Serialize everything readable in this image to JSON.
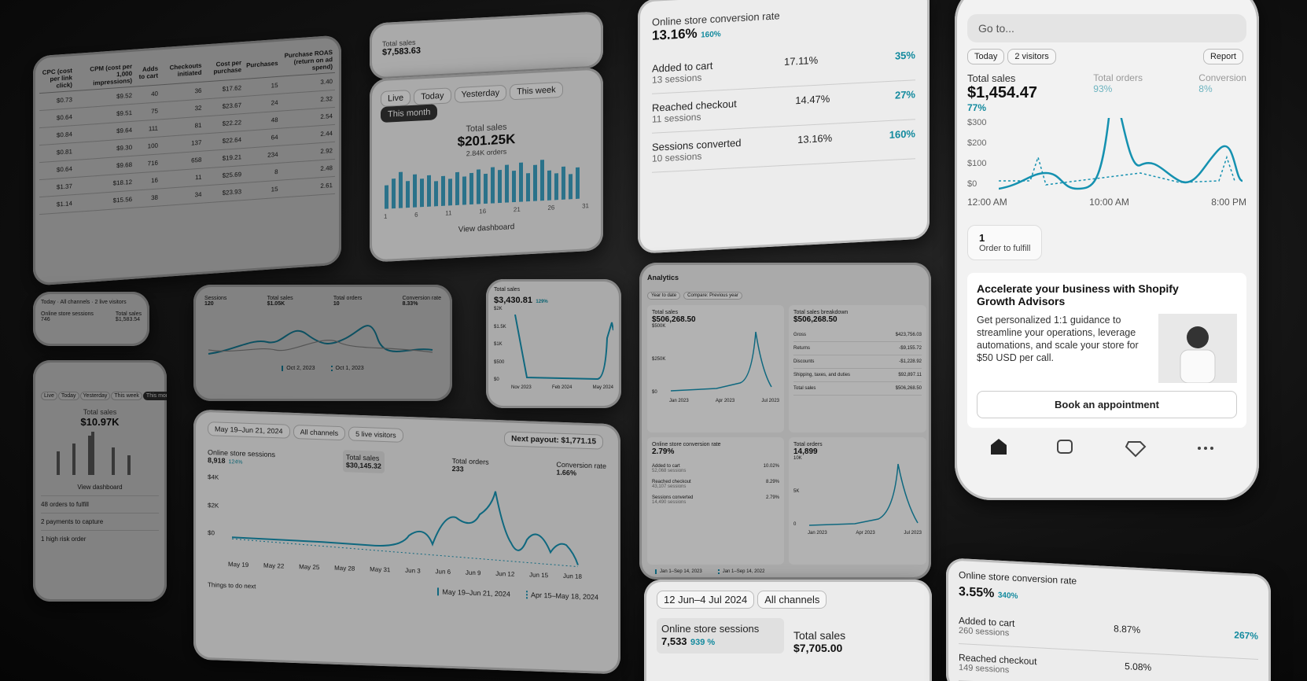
{
  "ads_table": {
    "headers": [
      "CPC (cost per link click)",
      "CPM (cost per 1,000 impressions)",
      "Adds to cart",
      "Checkouts initiated",
      "Cost per purchase",
      "Purchases",
      "Purchase ROAS (return on ad spend)"
    ],
    "rows": [
      [
        "$0.73",
        "$9.52",
        "40",
        "36",
        "$17.62",
        "15",
        "3.40"
      ],
      [
        "$0.64",
        "$9.51",
        "75",
        "32",
        "$23.67",
        "24",
        "2.32"
      ],
      [
        "$0.84",
        "$9.64",
        "111",
        "81",
        "$22.22",
        "48",
        "2.54"
      ],
      [
        "$0.81",
        "$9.30",
        "100",
        "137",
        "$22.64",
        "64",
        "2.44"
      ],
      [
        "$0.64",
        "$9.68",
        "716",
        "658",
        "$19.21",
        "234",
        "2.92"
      ],
      [
        "$1.37",
        "$18.12",
        "16",
        "11",
        "$25.69",
        "8",
        "2.48"
      ],
      [
        "$1.14",
        "$15.56",
        "38",
        "34",
        "$23.93",
        "15",
        "2.61"
      ]
    ]
  },
  "small_sales": {
    "label": "Total sales",
    "value": "$7,583.63"
  },
  "dashboard": {
    "tabs": [
      "Live",
      "Today",
      "Yesterday",
      "This week",
      "This month"
    ],
    "label": "Total sales",
    "value": "$201.25K",
    "orders": "2.84K orders",
    "x_labels": [
      "1",
      "6",
      "11",
      "16",
      "21",
      "26",
      "31"
    ],
    "link": "View dashboard"
  },
  "conversion": {
    "title": "Online store conversion rate",
    "value": "13.16%",
    "change": "160%",
    "rows": [
      {
        "label": "Added to cart",
        "sessions": "13 sessions",
        "rate": "17.11%",
        "change": "35%"
      },
      {
        "label": "Reached checkout",
        "sessions": "11 sessions",
        "rate": "14.47%",
        "change": "27%"
      },
      {
        "label": "Sessions converted",
        "sessions": "10 sessions",
        "rate": "13.16%",
        "change": "160%"
      }
    ]
  },
  "phone": {
    "search": "Go to...",
    "report": "Report",
    "period": "Today",
    "visitors": "2 visitors",
    "total_orders": "Total orders",
    "orders_change": "93%",
    "conversion": "Conversion",
    "conversion_change": "8%",
    "sales_label": "Total sales",
    "sales_value": "$1,454.47",
    "sales_change": "77%",
    "y_labels": [
      "$300",
      "$200",
      "$100",
      "$0"
    ],
    "x_labels": [
      "12:00 AM",
      "10:00 AM",
      "8:00 PM"
    ],
    "fulfill_count": "1",
    "fulfill_label": "Order to fulfill",
    "promo_title": "Accelerate your business with Shopify Growth Advisors",
    "promo_text": "Get personalized 1:1 guidance to streamline your operations, leverage automations, and scale your store for $50 USD per call.",
    "promo_button": "Book an appointment"
  },
  "left_small": {
    "period": "Today",
    "channels": "All channels",
    "visitors": "2 live visitors",
    "sessions_label": "Online store sessions",
    "sessions_value": "746",
    "sales_label": "Total sales",
    "sales_value": "$1,583.54"
  },
  "left_bottom": {
    "tabs": [
      "Live",
      "Today",
      "Yesterday",
      "This week",
      "This month"
    ],
    "label": "Total sales",
    "value": "$10.97K",
    "link": "View dashboard",
    "tasks": [
      "48 orders to fulfill",
      "2 payments to capture",
      "1 high risk order"
    ]
  },
  "mini_metrics": {
    "metrics": [
      {
        "label": "Sessions",
        "value": "120"
      },
      {
        "label": "Total sales",
        "value": "$1.05K"
      },
      {
        "label": "Total orders",
        "value": "10"
      },
      {
        "label": "Conversion rate",
        "value": "8.33%"
      }
    ],
    "legend": [
      "Oct 2, 2023",
      "Oct 1, 2023"
    ]
  },
  "sales_card": {
    "label": "Total sales",
    "value": "$3,430.81",
    "change": "129%",
    "y_labels": [
      "$2K",
      "$1.5K",
      "$1K",
      "$500",
      "$0"
    ],
    "x_labels": [
      "Nov 2023",
      "Feb 2024",
      "May 2024"
    ]
  },
  "analytics": {
    "title": "Analytics",
    "period": "Year to date",
    "compare": "Compare: Previous year",
    "sales_label": "Total sales",
    "sales_value": "$506,268.50",
    "sales_y": [
      "$500K",
      "$250K",
      "$0"
    ],
    "sales_x": [
      "Jan 2023",
      "Apr 2023",
      "Jul 2023"
    ],
    "breakdown_title": "Total sales breakdown",
    "breakdown_value": "$506,268.50",
    "breakdown": [
      [
        "Gross",
        "$423,756.03"
      ],
      [
        "Returns",
        "-$9,155.72"
      ],
      [
        "Discounts",
        "-$1,228.92"
      ],
      [
        "Shipping, taxes, and duties",
        "$92,897.11"
      ],
      [
        "Total sales",
        "$506,268.50"
      ]
    ],
    "conv_label": "Online store conversion rate",
    "conv_value": "2.79%",
    "conv_rows": [
      [
        "Added to cart",
        "52,068 sessions",
        "10.02%"
      ],
      [
        "Reached checkout",
        "43,107 sessions",
        "8.29%"
      ],
      [
        "Sessions converted",
        "14,490 sessions",
        "2.79%"
      ]
    ],
    "orders_label": "Total orders",
    "orders_value": "14,899",
    "orders_y": [
      "10K",
      "5K",
      "0"
    ],
    "orders_x": [
      "Jan 2023",
      "Apr 2023",
      "Jul 2023"
    ],
    "legend": [
      "Jan 1–Sep 14, 2023",
      "Jan 1–Sep 14, 2022"
    ]
  },
  "big_card": {
    "period": "May 19–Jun 21, 2024",
    "channels": "All channels",
    "visitors": "5 live visitors",
    "payout": "Next payout: $1,771.15",
    "metrics": [
      {
        "label": "Online store sessions",
        "value": "8,918",
        "change": "124%"
      },
      {
        "label": "Total sales",
        "value": "$30,145.32"
      },
      {
        "label": "Total orders",
        "value": "233"
      },
      {
        "label": "Conversion rate",
        "value": "1.66%"
      }
    ],
    "y_labels": [
      "$4K",
      "$2K",
      "$0"
    ],
    "x_labels": [
      "May 19",
      "May 22",
      "May 25",
      "May 28",
      "May 31",
      "Jun 3",
      "Jun 6",
      "Jun 9",
      "Jun 12",
      "Jun 15",
      "Jun 18"
    ],
    "legend": [
      "May 19–Jun 21, 2024",
      "Apr 15–May 18, 2024"
    ],
    "footer": "Things to do next"
  },
  "bottom_center": {
    "period": "12 Jun–4 Jul 2024",
    "channels": "All channels",
    "sessions_label": "Online store sessions",
    "sessions_value": "7,533",
    "sessions_change": "939 %",
    "sales_label": "Total sales",
    "sales_value": "$7,705.00"
  },
  "bottom_right": {
    "title": "Online store conversion rate",
    "value": "3.55%",
    "change": "340%",
    "rows": [
      {
        "label": "Added to cart",
        "sessions": "260 sessions",
        "rate": "8.87%",
        "change": "267%"
      },
      {
        "label": "Reached checkout",
        "sessions": "149 sessions",
        "rate": "5.08%"
      }
    ]
  }
}
